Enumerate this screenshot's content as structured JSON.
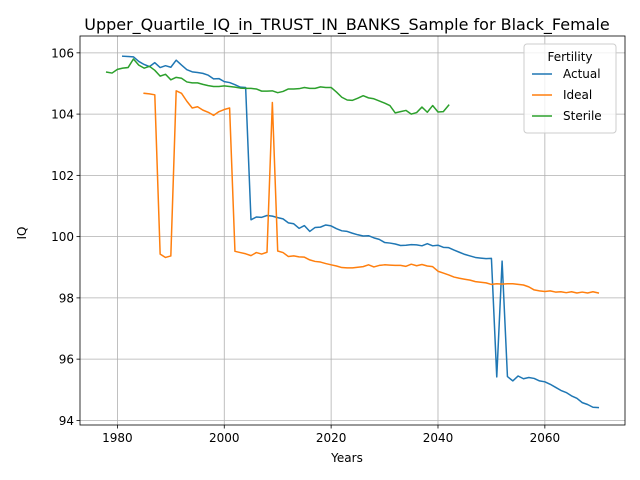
{
  "chart_data": {
    "type": "line",
    "title": "Upper_Quartile_IQ_in_TRUST_IN_BANKS_Sample for Black_Female",
    "xlabel": "Years",
    "ylabel": "IQ",
    "xlim": [
      1973,
      2075
    ],
    "ylim": [
      93.85,
      106.55
    ],
    "xticks": [
      1980,
      2000,
      2020,
      2040,
      2060
    ],
    "yticks": [
      94,
      96,
      98,
      100,
      102,
      104,
      106
    ],
    "grid": true,
    "legend": {
      "title": "Fertility",
      "position": "top-right"
    },
    "series": [
      {
        "name": "Actual",
        "color": "#1f77b4",
        "x": [
          1981,
          1982,
          1983,
          1984,
          1985,
          1986,
          1987,
          1988,
          1989,
          1990,
          1991,
          1992,
          1993,
          1994,
          1995,
          1996,
          1997,
          1998,
          1999,
          2000,
          2001,
          2002,
          2003,
          2004,
          2005,
          2006,
          2007,
          2008,
          2009,
          2010,
          2011,
          2012,
          2013,
          2014,
          2015,
          2016,
          2017,
          2018,
          2019,
          2020,
          2021,
          2022,
          2023,
          2024,
          2025,
          2026,
          2027,
          2028,
          2029,
          2030,
          2031,
          2032,
          2033,
          2034,
          2035,
          2036,
          2037,
          2038,
          2039,
          2040,
          2041,
          2042,
          2043,
          2044,
          2045,
          2046,
          2047,
          2048,
          2049,
          2050,
          2051,
          2052,
          2053,
          2054,
          2055,
          2056,
          2057,
          2058,
          2059,
          2060,
          2061,
          2062,
          2063,
          2064,
          2065,
          2066,
          2067,
          2068,
          2069,
          2070
        ],
        "values": [
          105.89,
          105.88,
          105.87,
          105.72,
          105.62,
          105.55,
          105.68,
          105.52,
          105.58,
          105.53,
          105.76,
          105.6,
          105.45,
          105.38,
          105.36,
          105.33,
          105.27,
          105.15,
          105.16,
          105.06,
          105.03,
          104.96,
          104.88,
          104.87,
          100.55,
          100.64,
          100.63,
          100.69,
          100.67,
          100.62,
          100.58,
          100.45,
          100.42,
          100.27,
          100.36,
          100.17,
          100.3,
          100.31,
          100.38,
          100.35,
          100.26,
          100.19,
          100.17,
          100.11,
          100.06,
          100.02,
          100.03,
          99.96,
          99.91,
          99.81,
          99.79,
          99.76,
          99.71,
          99.72,
          99.74,
          99.73,
          99.7,
          99.77,
          99.7,
          99.72,
          99.65,
          99.64,
          99.56,
          99.49,
          99.42,
          99.37,
          99.32,
          99.3,
          99.28,
          99.29,
          95.42,
          99.2,
          95.43,
          95.29,
          95.45,
          95.36,
          95.4,
          95.37,
          95.29,
          95.26,
          95.18,
          95.08,
          94.98,
          94.91,
          94.8,
          94.72,
          94.58,
          94.52,
          94.43,
          94.42
        ]
      },
      {
        "name": "Ideal",
        "color": "#ff7f0e",
        "x": [
          1985,
          1986,
          1987,
          1988,
          1989,
          1990,
          1991,
          1992,
          1993,
          1994,
          1995,
          1996,
          1997,
          1998,
          1999,
          2000,
          2001,
          2002,
          2003,
          2004,
          2005,
          2006,
          2007,
          2008,
          2009,
          2010,
          2011,
          2012,
          2013,
          2014,
          2015,
          2016,
          2017,
          2018,
          2019,
          2020,
          2021,
          2022,
          2023,
          2024,
          2025,
          2026,
          2027,
          2028,
          2029,
          2030,
          2031,
          2032,
          2033,
          2034,
          2035,
          2036,
          2037,
          2038,
          2039,
          2040,
          2041,
          2042,
          2043,
          2044,
          2045,
          2046,
          2047,
          2048,
          2049,
          2050,
          2051,
          2052,
          2053,
          2054,
          2055,
          2056,
          2057,
          2058,
          2059,
          2060,
          2061,
          2062,
          2063,
          2064,
          2065,
          2066,
          2067,
          2068,
          2069,
          2070
        ],
        "values": [
          104.68,
          104.66,
          104.63,
          99.43,
          99.32,
          99.37,
          104.76,
          104.68,
          104.42,
          104.2,
          104.24,
          104.13,
          104.06,
          103.96,
          104.08,
          104.15,
          104.2,
          99.52,
          99.48,
          99.44,
          99.38,
          99.48,
          99.43,
          99.49,
          104.38,
          99.53,
          99.48,
          99.35,
          99.37,
          99.34,
          99.33,
          99.24,
          99.19,
          99.17,
          99.12,
          99.08,
          99.04,
          98.99,
          98.98,
          98.98,
          99.0,
          99.02,
          99.08,
          99.01,
          99.06,
          99.08,
          99.07,
          99.06,
          99.06,
          99.03,
          99.1,
          99.05,
          99.09,
          99.04,
          99.02,
          98.87,
          98.81,
          98.75,
          98.68,
          98.64,
          98.61,
          98.58,
          98.53,
          98.51,
          98.49,
          98.44,
          98.46,
          98.45,
          98.46,
          98.46,
          98.44,
          98.42,
          98.36,
          98.26,
          98.23,
          98.21,
          98.23,
          98.19,
          98.2,
          98.17,
          98.2,
          98.16,
          98.19,
          98.16,
          98.2,
          98.16
        ]
      },
      {
        "name": "Sterile",
        "color": "#2ca02c",
        "x": [
          1978,
          1979,
          1980,
          1981,
          1982,
          1983,
          1984,
          1985,
          1986,
          1987,
          1988,
          1989,
          1990,
          1991,
          1992,
          1993,
          1994,
          1995,
          1996,
          1997,
          1998,
          1999,
          2000,
          2001,
          2002,
          2003,
          2004,
          2005,
          2006,
          2007,
          2008,
          2009,
          2010,
          2011,
          2012,
          2013,
          2014,
          2015,
          2016,
          2017,
          2018,
          2019,
          2020,
          2021,
          2022,
          2023,
          2024,
          2025,
          2026,
          2027,
          2028,
          2029,
          2030,
          2031,
          2032,
          2033,
          2034,
          2035,
          2036,
          2037,
          2038,
          2039,
          2040,
          2041,
          2042
        ],
        "values": [
          105.37,
          105.34,
          105.46,
          105.5,
          105.52,
          105.8,
          105.6,
          105.5,
          105.56,
          105.43,
          105.24,
          105.3,
          105.12,
          105.2,
          105.17,
          105.05,
          105.02,
          105.02,
          104.97,
          104.93,
          104.9,
          104.9,
          104.92,
          104.9,
          104.88,
          104.85,
          104.84,
          104.84,
          104.82,
          104.75,
          104.75,
          104.76,
          104.7,
          104.74,
          104.82,
          104.82,
          104.83,
          104.87,
          104.84,
          104.84,
          104.89,
          104.87,
          104.87,
          104.72,
          104.55,
          104.46,
          104.45,
          104.52,
          104.6,
          104.53,
          104.5,
          104.43,
          104.36,
          104.28,
          104.04,
          104.08,
          104.12,
          104.0,
          104.05,
          104.23,
          104.06,
          104.28,
          104.07,
          104.08,
          104.29
        ]
      }
    ]
  }
}
